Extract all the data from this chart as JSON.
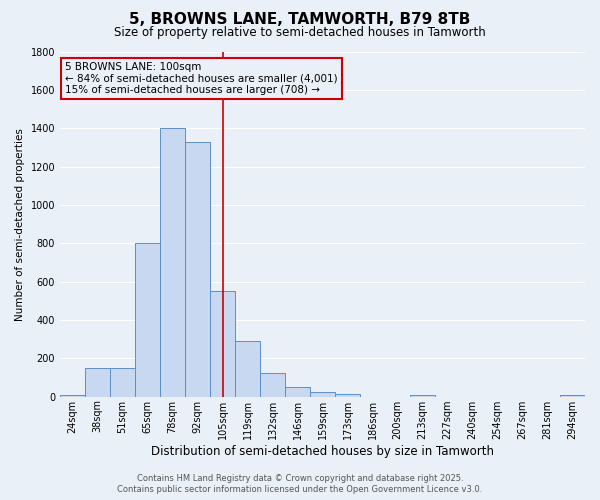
{
  "title": "5, BROWNS LANE, TAMWORTH, B79 8TB",
  "subtitle": "Size of property relative to semi-detached houses in Tamworth",
  "xlabel": "Distribution of semi-detached houses by size in Tamworth",
  "ylabel": "Number of semi-detached properties",
  "bin_labels": [
    "24sqm",
    "38sqm",
    "51sqm",
    "65sqm",
    "78sqm",
    "92sqm",
    "105sqm",
    "119sqm",
    "132sqm",
    "146sqm",
    "159sqm",
    "173sqm",
    "186sqm",
    "200sqm",
    "213sqm",
    "227sqm",
    "240sqm",
    "254sqm",
    "267sqm",
    "281sqm",
    "294sqm"
  ],
  "bar_heights": [
    10,
    150,
    150,
    800,
    1400,
    1330,
    550,
    290,
    125,
    50,
    25,
    15,
    0,
    0,
    8,
    0,
    0,
    0,
    0,
    0,
    8
  ],
  "bar_facecolor": "#c8d8f0",
  "bar_edgecolor": "#5a8fc8",
  "vline_index": 6,
  "vline_color": "#cc0000",
  "ylim": [
    0,
    1800
  ],
  "yticks": [
    0,
    200,
    400,
    600,
    800,
    1000,
    1200,
    1400,
    1600,
    1800
  ],
  "bg_color": "#eaf0f8",
  "grid_color": "#ffffff",
  "annotation_title": "5 BROWNS LANE: 100sqm",
  "annotation_line1": "← 84% of semi-detached houses are smaller (4,001)",
  "annotation_line2": "15% of semi-detached houses are larger (708) →",
  "annotation_box_color": "#cc0000",
  "footer_line1": "Contains HM Land Registry data © Crown copyright and database right 2025.",
  "footer_line2": "Contains public sector information licensed under the Open Government Licence v3.0.",
  "title_fontsize": 11,
  "subtitle_fontsize": 8.5,
  "xlabel_fontsize": 8.5,
  "ylabel_fontsize": 7.5,
  "tick_fontsize": 7,
  "annotation_fontsize": 7.5,
  "footer_fontsize": 6
}
